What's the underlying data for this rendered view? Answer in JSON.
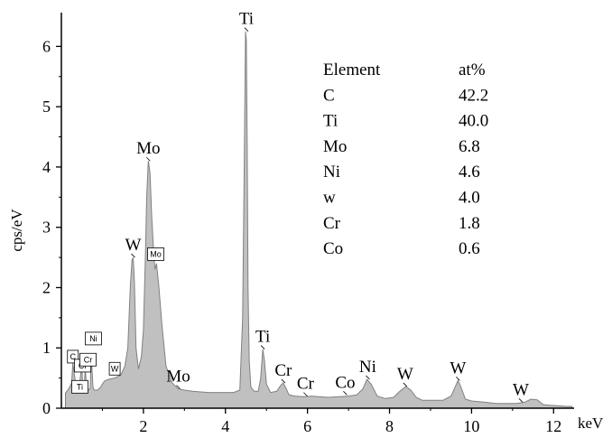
{
  "chart_data": {
    "type": "area",
    "xlabel": "keV",
    "ylabel": "cps/eV",
    "xlim": [
      0,
      12.5
    ],
    "ylim": [
      0,
      6.5
    ],
    "x_ticks": [
      2,
      4,
      6,
      8,
      10,
      12
    ],
    "y_ticks": [
      0,
      1,
      2,
      3,
      4,
      5,
      6
    ],
    "colors": {
      "fill": "#c0c0c0",
      "stroke": "#808080",
      "text": "#000000"
    },
    "series": [
      {
        "x": [
          0.1,
          0.18,
          0.25,
          0.28,
          0.32,
          0.36,
          0.42,
          0.5,
          0.52,
          0.55,
          0.58,
          0.62,
          0.7,
          0.73,
          0.77,
          0.8,
          0.88,
          0.96,
          1.0,
          1.05,
          1.15,
          1.3,
          1.45,
          1.55,
          1.62,
          1.68,
          1.72,
          1.75,
          1.78,
          1.82,
          1.88,
          1.95,
          2.0,
          2.05,
          2.08,
          2.12,
          2.16,
          2.2,
          2.25,
          2.28,
          2.32,
          2.38,
          2.45,
          2.55,
          2.7,
          2.85,
          3.0,
          3.2,
          3.4,
          3.6,
          3.8,
          4.0,
          4.2,
          4.35,
          4.42,
          4.46,
          4.49,
          4.51,
          4.53,
          4.55,
          4.58,
          4.62,
          4.7,
          4.8,
          4.86,
          4.91,
          4.95,
          5.0,
          5.1,
          5.25,
          5.35,
          5.41,
          5.47,
          5.55,
          5.7,
          5.9,
          6.1,
          6.5,
          7.0,
          7.2,
          7.35,
          7.45,
          7.55,
          7.7,
          7.9,
          8.1,
          8.25,
          8.4,
          8.52,
          8.65,
          8.8,
          9.0,
          9.3,
          9.5,
          9.6,
          9.67,
          9.74,
          9.85,
          10.0,
          10.3,
          10.6,
          10.9,
          11.1,
          11.3,
          11.45,
          11.6,
          11.75,
          11.9,
          12.1,
          12.3,
          12.45
        ],
        "y": [
          0.25,
          0.32,
          0.42,
          0.75,
          0.55,
          0.35,
          0.28,
          0.72,
          0.35,
          0.28,
          0.65,
          0.3,
          0.32,
          0.85,
          0.35,
          0.3,
          0.3,
          0.35,
          0.4,
          0.45,
          0.48,
          0.5,
          0.55,
          0.7,
          1.0,
          2.0,
          2.45,
          2.5,
          2.1,
          1.0,
          0.65,
          0.85,
          1.3,
          2.6,
          3.5,
          4.1,
          3.9,
          3.2,
          2.6,
          2.3,
          2.4,
          2.0,
          1.4,
          0.7,
          0.42,
          0.32,
          0.3,
          0.28,
          0.27,
          0.26,
          0.26,
          0.26,
          0.26,
          0.3,
          1.5,
          4.2,
          6.25,
          6.1,
          4.5,
          2.0,
          0.8,
          0.35,
          0.28,
          0.28,
          0.5,
          0.98,
          0.8,
          0.4,
          0.26,
          0.28,
          0.38,
          0.42,
          0.34,
          0.22,
          0.2,
          0.19,
          0.2,
          0.18,
          0.2,
          0.22,
          0.32,
          0.48,
          0.4,
          0.2,
          0.16,
          0.18,
          0.28,
          0.36,
          0.3,
          0.18,
          0.13,
          0.13,
          0.13,
          0.2,
          0.35,
          0.46,
          0.35,
          0.15,
          0.12,
          0.1,
          0.08,
          0.08,
          0.08,
          0.1,
          0.15,
          0.14,
          0.06,
          0.05,
          0.04,
          0.03,
          0.03
        ]
      }
    ],
    "peak_labels": [
      {
        "text": "Ti",
        "x": 4.51,
        "y": 6.25
      },
      {
        "text": "Mo",
        "x": 2.12,
        "y": 4.1
      },
      {
        "text": "W",
        "x": 1.75,
        "y": 2.5
      },
      {
        "text": "Ti",
        "x": 4.91,
        "y": 0.98
      },
      {
        "text": "Mo",
        "x": 2.85,
        "y": 0.32
      },
      {
        "text": "Cr",
        "x": 5.41,
        "y": 0.42
      },
      {
        "text": "Cr",
        "x": 5.95,
        "y": 0.2
      },
      {
        "text": "Co",
        "x": 6.92,
        "y": 0.22
      },
      {
        "text": "Ni",
        "x": 7.47,
        "y": 0.48
      },
      {
        "text": "W",
        "x": 8.38,
        "y": 0.36
      },
      {
        "text": "W",
        "x": 9.67,
        "y": 0.46
      },
      {
        "text": "W",
        "x": 11.2,
        "y": 0.1
      }
    ],
    "box_labels": [
      {
        "text": "Mo",
        "x": 2.3,
        "y": 2.45
      },
      {
        "text": "C",
        "x": 0.28,
        "y": 0.75
      },
      {
        "text": "Ti",
        "x": 0.45,
        "y": 0.25
      },
      {
        "text": "Cr",
        "x": 0.52,
        "y": 0.6
      },
      {
        "text": "Cr",
        "x": 0.65,
        "y": 0.7
      },
      {
        "text": "Ni",
        "x": 0.78,
        "y": 1.05
      },
      {
        "text": "W",
        "x": 1.3,
        "y": 0.55
      }
    ],
    "composition_table": {
      "headers": [
        "Element",
        "at%"
      ],
      "rows": [
        [
          "C",
          "42.2"
        ],
        [
          "Ti",
          "40.0"
        ],
        [
          "Mo",
          "6.8"
        ],
        [
          "Ni",
          "4.6"
        ],
        [
          "w",
          "4.0"
        ],
        [
          "Cr",
          "1.8"
        ],
        [
          "Co",
          "0.6"
        ]
      ]
    }
  }
}
